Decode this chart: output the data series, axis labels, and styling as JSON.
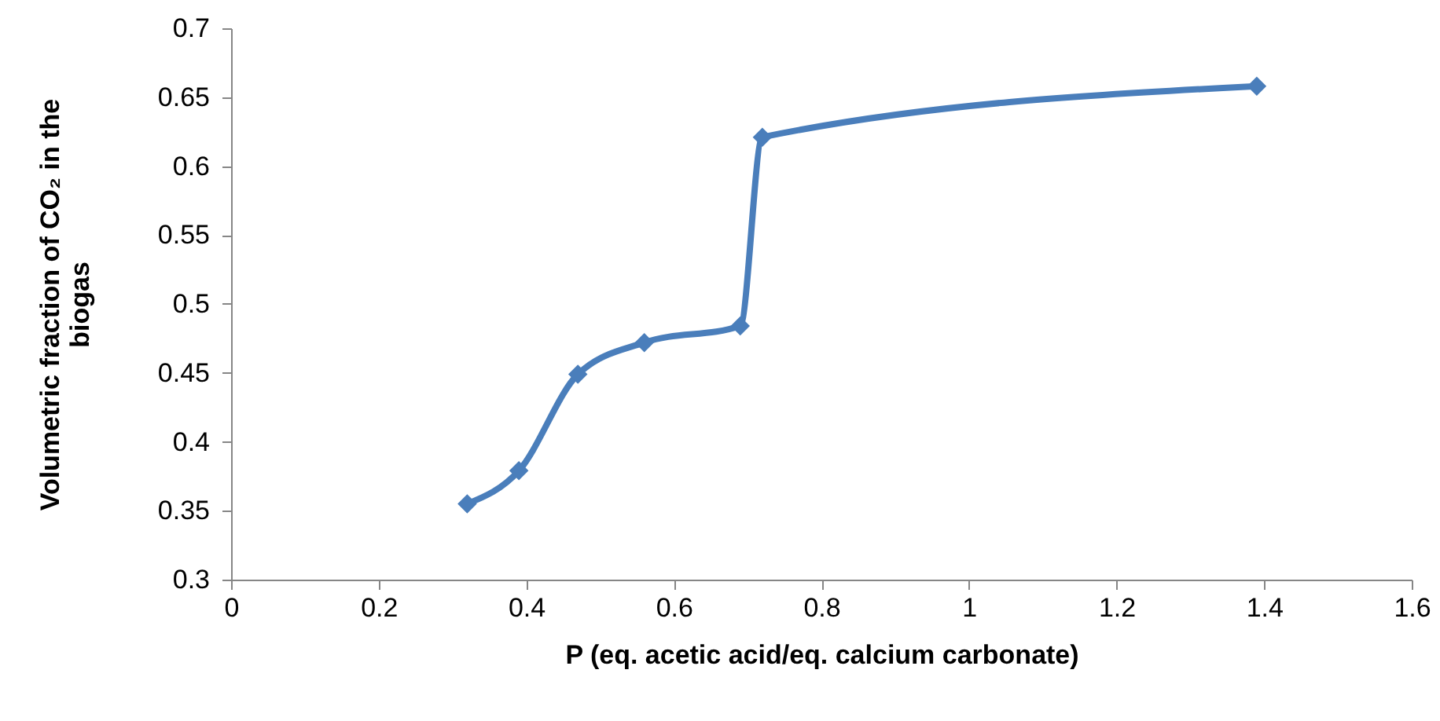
{
  "chart_data": {
    "type": "line",
    "xlabel": "P (eq. acetic acid/eq. calcium carbonate)",
    "ylabel": "Volumetric fraction of CO₂ in the biogas",
    "x": [
      0.32,
      0.39,
      0.47,
      0.56,
      0.69,
      0.72,
      1.39
    ],
    "series": [
      {
        "color": "#4a7ebb",
        "values": [
          0.355,
          0.379,
          0.449,
          0.472,
          0.484,
          0.621,
          0.658
        ]
      }
    ],
    "xlim": [
      0,
      1.6
    ],
    "xticks": [
      0,
      0.2,
      0.4,
      0.6,
      0.8,
      1,
      1.2,
      1.4,
      1.6
    ],
    "ylim": [
      0.3,
      0.7
    ],
    "yticks": [
      0.3,
      0.35,
      0.4,
      0.45,
      0.5,
      0.55,
      0.6,
      0.65,
      0.7
    ],
    "grid": false,
    "marker": "diamond",
    "line_style": "solid"
  }
}
